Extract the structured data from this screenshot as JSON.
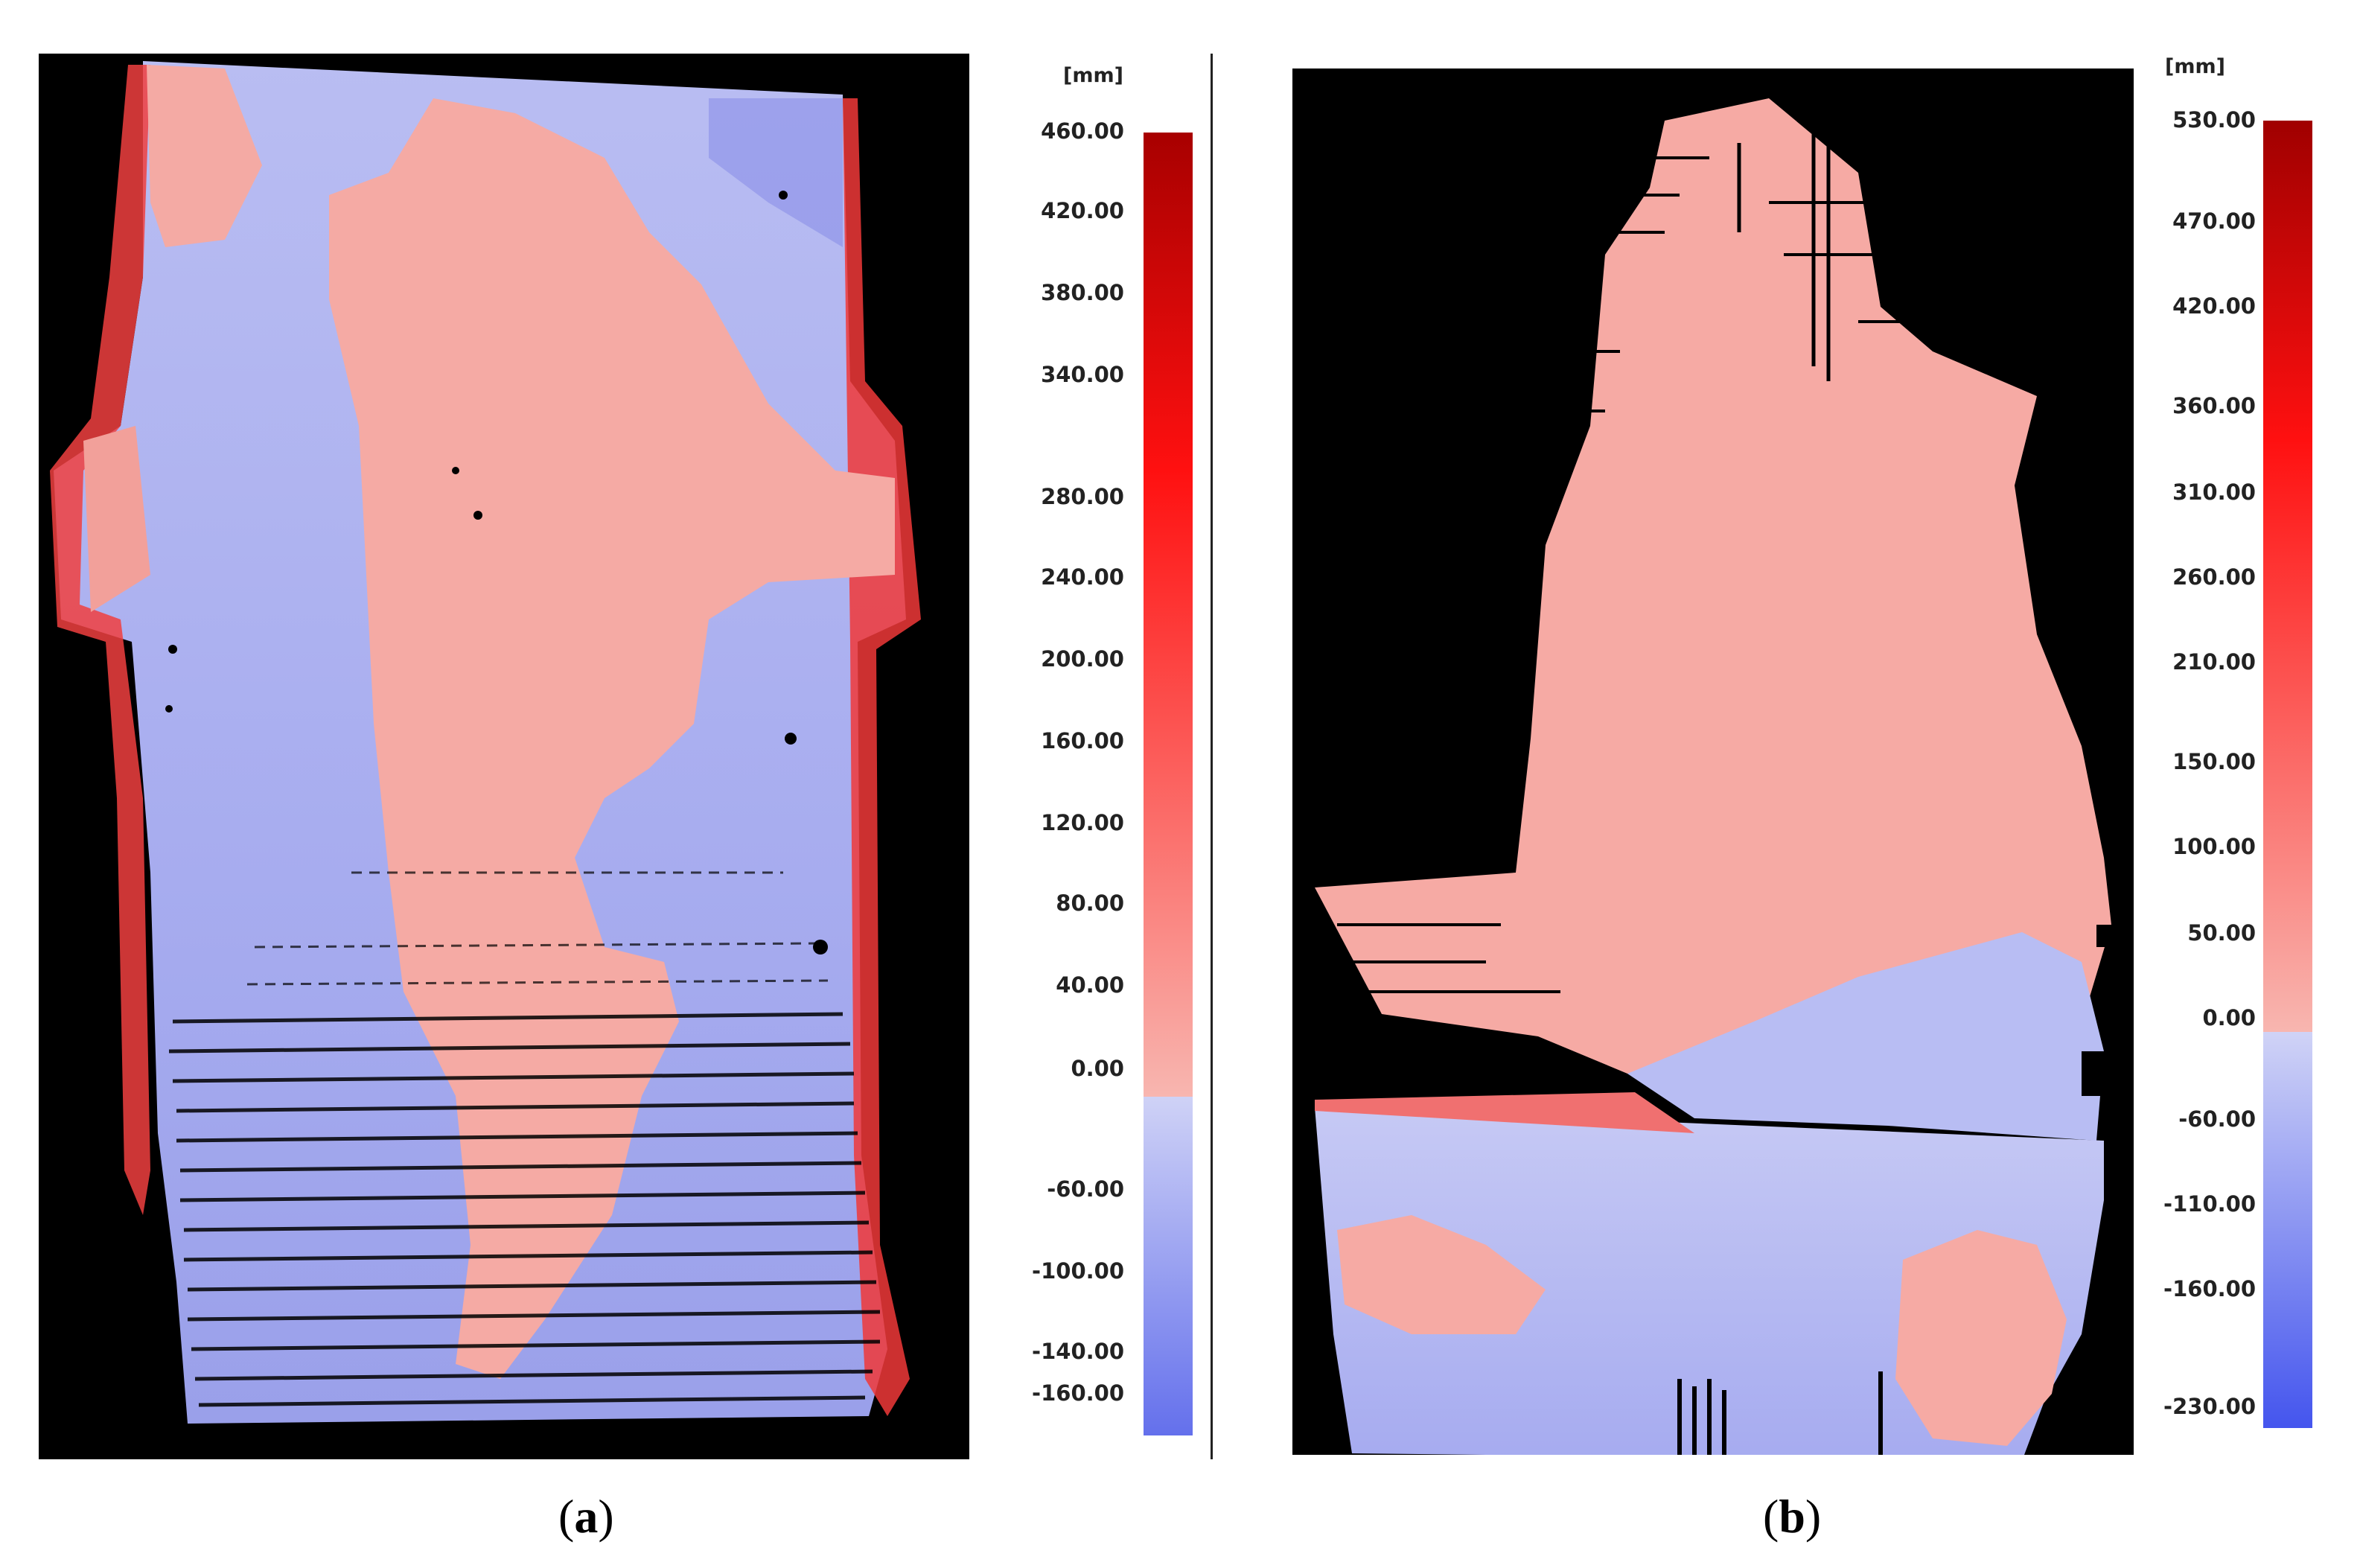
{
  "panels": [
    {
      "id": "a",
      "label_open": "(",
      "label_letter": "a",
      "label_close": ")",
      "unit": "[mm]",
      "ticks": [
        "460.00",
        "420.00",
        "380.00",
        "340.00",
        "280.00",
        "240.00",
        "200.00",
        "160.00",
        "120.00",
        "80.00",
        "40.00",
        "0.00",
        "-60.00",
        "-100.00",
        "-140.00",
        "-160.00"
      ]
    },
    {
      "id": "b",
      "label_open": "(",
      "label_letter": "b",
      "label_close": ")",
      "unit": "[mm]",
      "ticks": [
        "530.00",
        "470.00",
        "420.00",
        "360.00",
        "310.00",
        "260.00",
        "210.00",
        "150.00",
        "100.00",
        "50.00",
        "0.00",
        "-60.00",
        "-110.00",
        "-160.00",
        "-230.00"
      ]
    }
  ],
  "colors": {
    "background": "#000000",
    "positive_light": "#f8b0ab",
    "positive_dark": "#b00000",
    "negative_light": "#c8ccf4",
    "negative_dark": "#5560e8"
  }
}
